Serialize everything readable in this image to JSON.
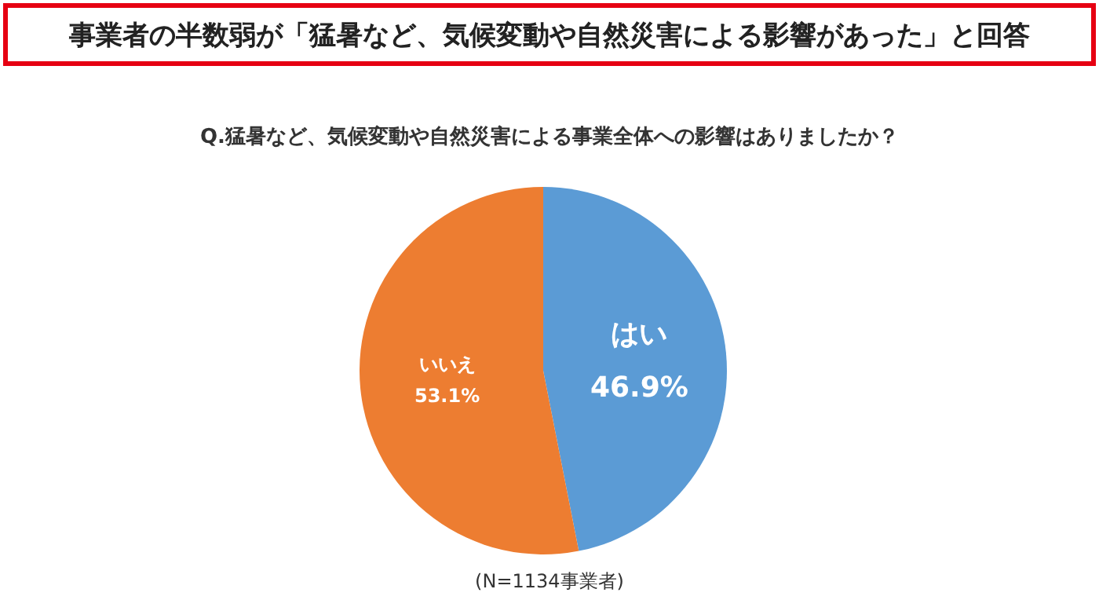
{
  "chart_data": {
    "type": "pie",
    "title": "事業者の半数弱が「猛暑など、気候変動や自然災害による影響があった」と回答",
    "subtitle": "Q.猛暑など、気候変動や自然災害による事業全体への影響はありましたか？",
    "categories": [
      "はい",
      "いいえ"
    ],
    "values": [
      46.9,
      53.1
    ],
    "colors": [
      "#5b9bd5",
      "#ed7d31"
    ],
    "value_labels": [
      "46.9%",
      "53.1%"
    ],
    "legend": false,
    "annotations": [
      "(N=1134事業者)"
    ]
  }
}
